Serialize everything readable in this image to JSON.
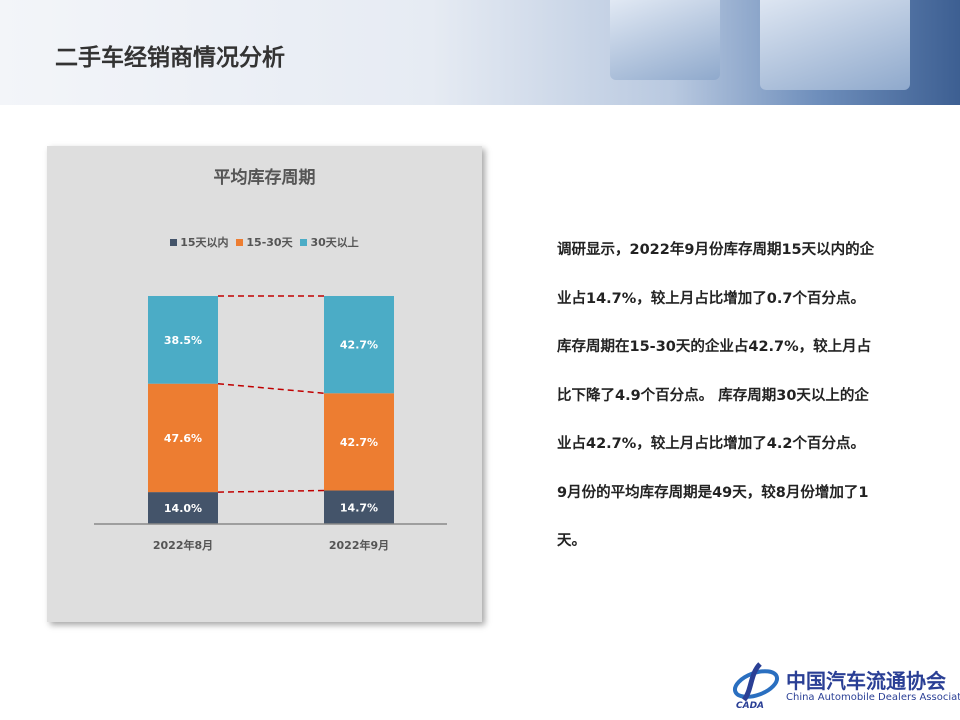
{
  "page_title": "二手车经销商情况分析",
  "chart_data": {
    "type": "bar",
    "stacked": true,
    "title": "平均库存周期",
    "categories": [
      "2022年8月",
      "2022年9月"
    ],
    "series": [
      {
        "name": "15天以内",
        "values": [
          14.0,
          14.7
        ],
        "labels": [
          "14.0%",
          "14.7%"
        ],
        "color": "#44546a"
      },
      {
        "name": "15-30天",
        "values": [
          47.6,
          42.7
        ],
        "labels": [
          "47.6%",
          "42.7%"
        ],
        "color": "#ed7d31"
      },
      {
        "name": "30天以上",
        "values": [
          38.5,
          42.7
        ],
        "labels": [
          "38.5%",
          "42.7%"
        ],
        "color": "#4bacc6"
      }
    ],
    "legend_position": "top",
    "series_lines": true,
    "series_line_color": "#c00000",
    "grid": false
  },
  "description": [
    "调研显示，2022年9月份库存周期15天以内的企",
    "业占14.7%，较上月占比增加了0.7个百分点。",
    "库存周期在15-30天的企业占42.7%，较上月占",
    "比下降了4.9个百分点。 库存周期30天以上的企",
    "业占42.7%，较上月占比增加了4.2个百分点。",
    "9月份的平均库存周期是49天，较8月份增加了1",
    "天。"
  ],
  "logo": {
    "cn": "中国汽车流通协会",
    "en": "China Automobile Dealers Association",
    "mark": "CADA"
  }
}
